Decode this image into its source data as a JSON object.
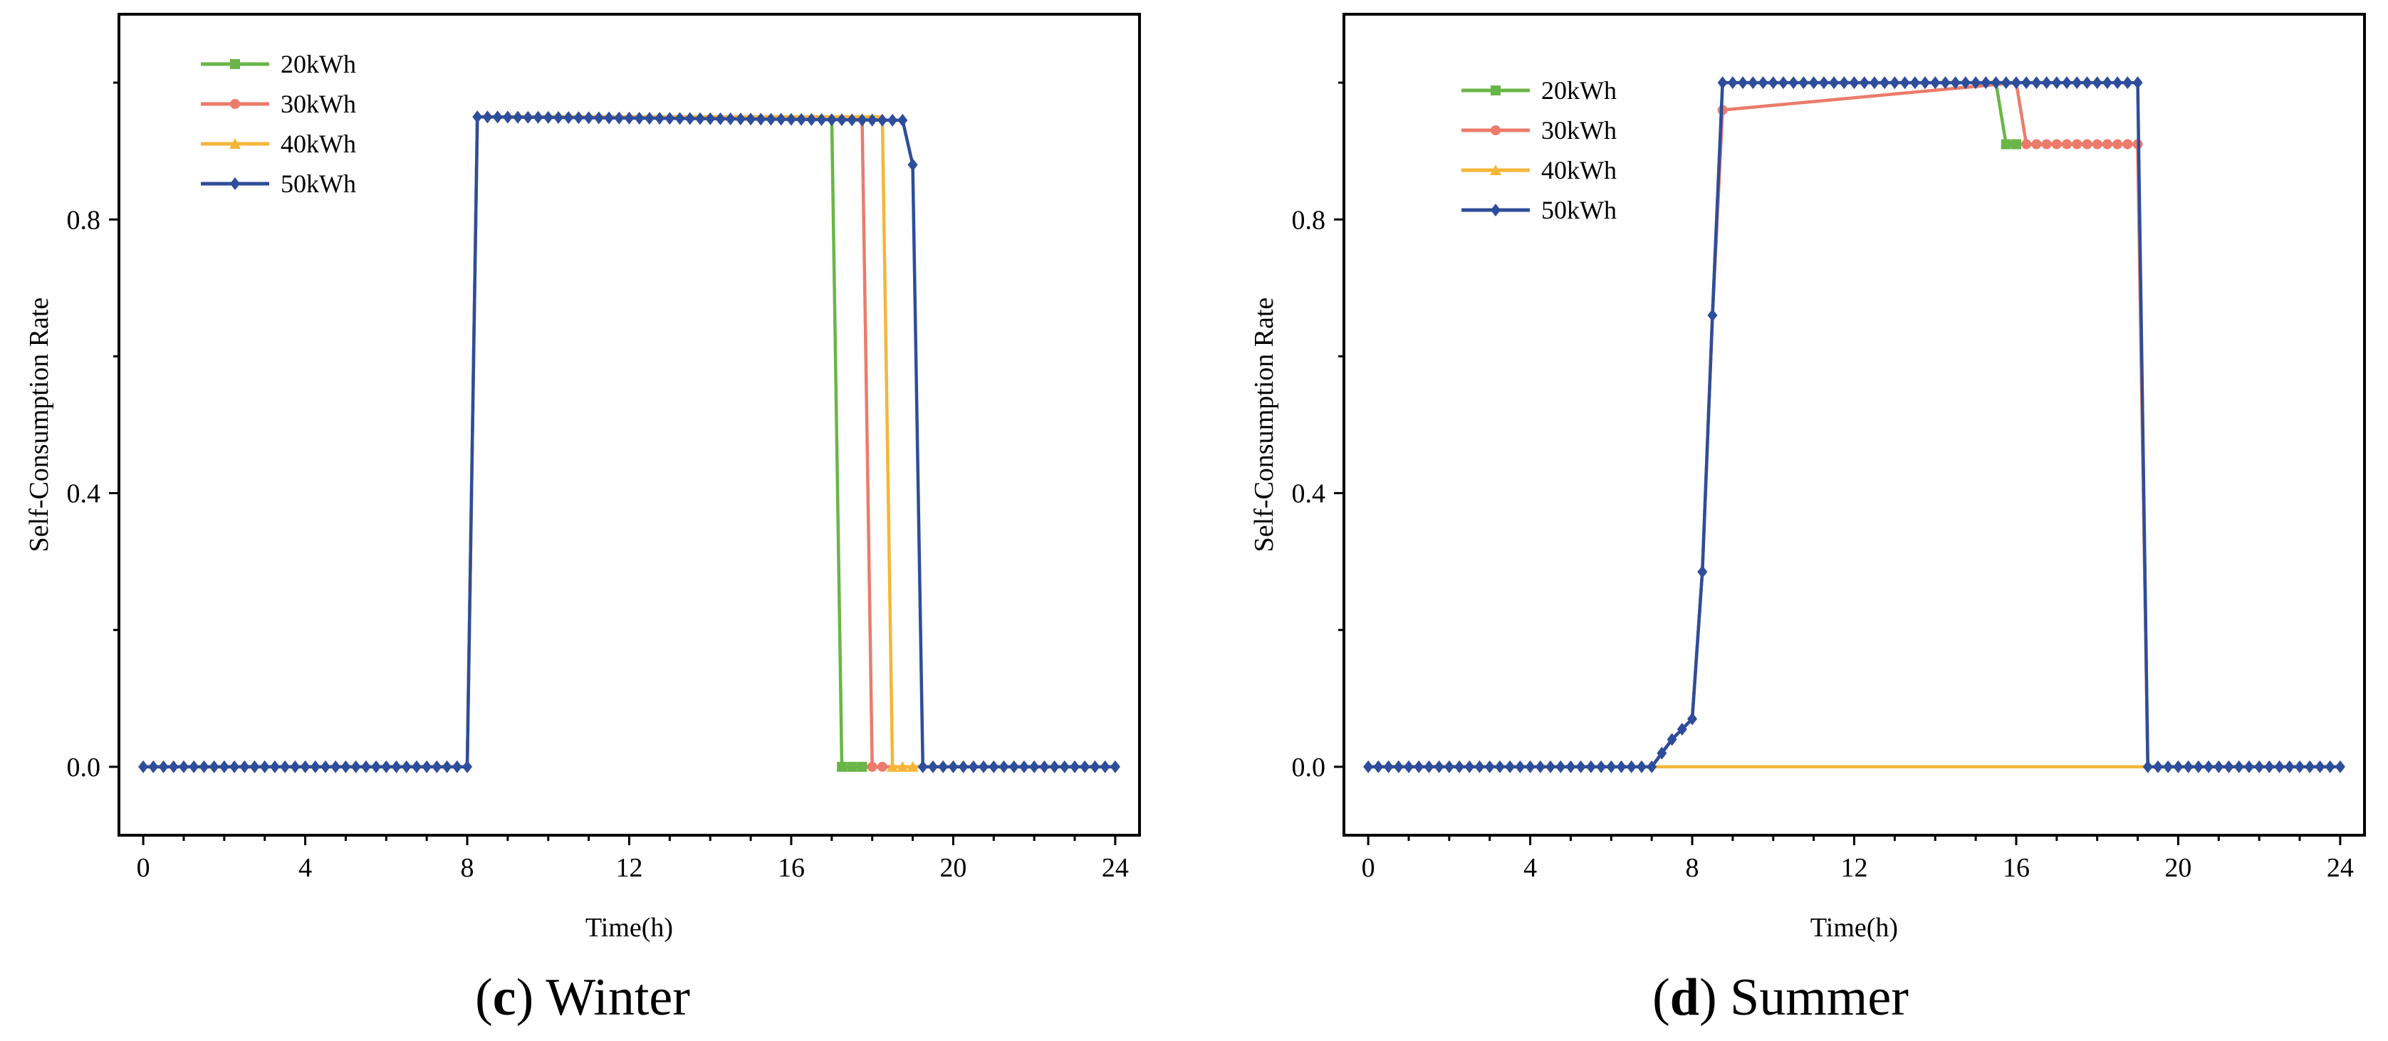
{
  "chart_data": [
    {
      "type": "line",
      "caption_letter": "c",
      "caption_text": " Winter",
      "xlabel": "Time(h)",
      "ylabel": "Self-Consumption Rate",
      "xlim": [
        -0.6,
        24.6
      ],
      "ylim": [
        -0.1,
        1.1
      ],
      "xticks": [
        0,
        4,
        8,
        12,
        16,
        20,
        24
      ],
      "xtick_labels": [
        "0",
        "4",
        "8",
        "12",
        "16",
        "20",
        "24"
      ],
      "yticks": [
        0.0,
        0.4,
        0.8
      ],
      "ytick_labels": [
        "0.0",
        "0.4",
        "0.8"
      ],
      "legend_position": "top-left",
      "series": [
        {
          "name": "20kWh",
          "color": "#6ab547",
          "marker": "square",
          "x": [
            0,
            8,
            8.25,
            17.0,
            17.25,
            24
          ],
          "y": [
            0,
            0,
            0.95,
            0.95,
            0,
            0
          ],
          "marker_x": [
            17.25,
            17.5,
            17.75
          ]
        },
        {
          "name": "30kWh",
          "color": "#ec7b6b",
          "marker": "circle",
          "x": [
            0,
            8,
            8.25,
            17.75,
            18.0,
            24
          ],
          "y": [
            0,
            0,
            0.95,
            0.95,
            0,
            0
          ],
          "marker_x": [
            18.0,
            18.25
          ]
        },
        {
          "name": "40kWh",
          "color": "#f5b638",
          "marker": "triangle",
          "x": [
            0,
            8,
            8.25,
            18.25,
            18.5,
            24
          ],
          "y": [
            0,
            0,
            0.95,
            0.95,
            0,
            0
          ],
          "marker_x": [
            18.5,
            18.75,
            19.0
          ]
        },
        {
          "name": "50kWh",
          "color": "#2e4d9b",
          "marker": "diamond",
          "x": [
            0,
            8,
            8.25,
            18.75,
            19.0,
            19.25,
            24
          ],
          "y": [
            0,
            0,
            0.95,
            0.945,
            0.88,
            0,
            0
          ],
          "step": 0.25
        }
      ]
    },
    {
      "type": "line",
      "caption_letter": "d",
      "caption_text": " Summer",
      "xlabel": "Time(h)",
      "ylabel": "Self-Consumption Rate",
      "xlim": [
        -0.6,
        24.6
      ],
      "ylim": [
        -0.1,
        1.1
      ],
      "xticks": [
        0,
        4,
        8,
        12,
        16,
        20,
        24
      ],
      "xtick_labels": [
        "0",
        "4",
        "8",
        "12",
        "16",
        "20",
        "24"
      ],
      "yticks": [
        0.0,
        0.4,
        0.8
      ],
      "ytick_labels": [
        "0.0",
        "0.4",
        "0.8"
      ],
      "legend_position": "top-left",
      "series": [
        {
          "name": "20kWh",
          "color": "#6ab547",
          "marker": "square",
          "x": [
            0,
            7.0,
            7.25,
            7.5,
            7.75,
            8.0,
            8.25,
            8.5,
            8.75,
            15.5,
            15.75,
            19.0,
            19.25,
            24
          ],
          "y": [
            0,
            0,
            0.02,
            0.04,
            0.055,
            0.07,
            0.285,
            0.66,
            1.0,
            1.0,
            0.91,
            0.91,
            0,
            0
          ],
          "marker_x": [
            15.75,
            16.0
          ]
        },
        {
          "name": "30kWh",
          "color": "#ec7b6b",
          "marker": "circle",
          "x": [
            0,
            7.0,
            7.25,
            7.5,
            7.75,
            8.0,
            8.25,
            8.5,
            8.75,
            16.0,
            16.25,
            19.0,
            19.25,
            24
          ],
          "y": [
            0,
            0,
            0.02,
            0.04,
            0.055,
            0.07,
            0.285,
            0.66,
            0.96,
            1.0,
            0.91,
            0.91,
            0,
            0
          ],
          "marker_x": [
            8.75,
            16.25,
            16.5,
            16.75,
            17.0,
            17.25,
            17.5,
            17.75,
            18.0,
            18.25,
            18.5,
            18.75,
            19.0
          ]
        },
        {
          "name": "40kWh",
          "color": "#f5b638",
          "marker": "triangle",
          "x": [
            0,
            24
          ],
          "y": [
            0,
            0
          ],
          "marker_x": []
        },
        {
          "name": "50kWh",
          "color": "#2e4d9b",
          "marker": "diamond",
          "x": [
            0,
            7.0,
            7.25,
            7.5,
            7.75,
            8.0,
            8.25,
            8.5,
            8.75,
            19.0,
            19.25,
            24
          ],
          "y": [
            0,
            0,
            0.02,
            0.04,
            0.055,
            0.07,
            0.285,
            0.66,
            1.0,
            1.0,
            0,
            0
          ],
          "step": 0.25
        }
      ]
    }
  ]
}
